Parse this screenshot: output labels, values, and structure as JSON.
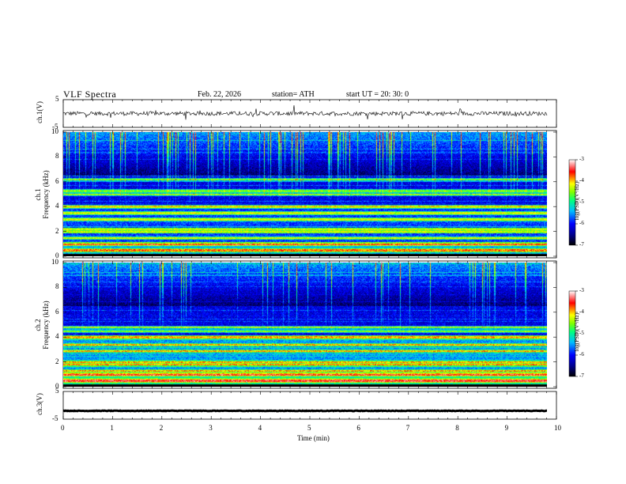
{
  "header": {
    "title": "VLF  Spectra",
    "date": "Feb. 22, 2026",
    "station": "station= ATH",
    "start_ut": "start  UT  =   20: 30: 0"
  },
  "chart_data": [
    {
      "type": "line",
      "name": "ch1-waveform",
      "ylabel": "ch.1(V)",
      "ylim": [
        -5,
        5
      ],
      "yticks": [
        "5",
        "-5"
      ],
      "xlim": [
        0,
        10
      ],
      "description_values": {
        "baseline": 0,
        "noise_amplitude": 1.5
      }
    },
    {
      "type": "heatmap",
      "name": "ch1-spectrogram",
      "ylabel": "ch.1\nFrequency  (kHz)",
      "ylabel_line1": "ch.1",
      "ylabel_line2": "Frequency  (kHz)",
      "ylim": [
        0,
        10
      ],
      "yticks": [
        "0",
        "2",
        "4",
        "6",
        "8",
        "10"
      ],
      "xlim": [
        0,
        9.8
      ],
      "colorbar": {
        "label": "log(PSD)(V²/Hz)",
        "range": [
          -7,
          -3
        ],
        "ticks": [
          "-3",
          "-4",
          "-5",
          "-6",
          "-7"
        ]
      },
      "bands_khz": [
        0.5,
        1.0,
        1.5,
        2.0,
        2.2,
        3.0,
        3.5,
        4.0,
        5.0,
        5.3,
        6.2
      ]
    },
    {
      "type": "heatmap",
      "name": "ch2-spectrogram",
      "ylabel_line1": "ch.2",
      "ylabel_line2": "Frequency  (kHz)",
      "ylim": [
        0,
        10
      ],
      "yticks": [
        "0",
        "2",
        "4",
        "6",
        "8",
        "10"
      ],
      "xlim": [
        0,
        9.8
      ],
      "colorbar": {
        "label": "log(PSD)(V²/Hz)",
        "range": [
          -7,
          -3
        ],
        "ticks": [
          "-3",
          "-4",
          "-5",
          "-6",
          "-7"
        ]
      },
      "bands_khz": [
        0.5,
        1.0,
        1.3,
        1.8,
        2.0,
        2.9,
        3.4,
        4.0,
        4.5,
        4.8
      ]
    },
    {
      "type": "line",
      "name": "ch3-waveform",
      "ylabel": "ch.3(V)",
      "ylim": [
        -5,
        5
      ],
      "yticks": [
        "5",
        "-5"
      ],
      "xlim": [
        0,
        10
      ],
      "description_values": {
        "baseline": -2,
        "noise_amplitude": 0.2
      }
    }
  ],
  "x_axis": {
    "label": "Time  (min)",
    "ticks": [
      "0",
      "1",
      "2",
      "3",
      "4",
      "5",
      "6",
      "7",
      "8",
      "9",
      "10"
    ],
    "range": [
      0,
      10
    ]
  },
  "colors": {
    "background": "#ffffff",
    "axis": "#000000",
    "colormap": [
      "#000000",
      "#00008b",
      "#0000ff",
      "#00bfff",
      "#00ff7f",
      "#7fff00",
      "#ffff00",
      "#ff0000",
      "#ffffff"
    ]
  }
}
